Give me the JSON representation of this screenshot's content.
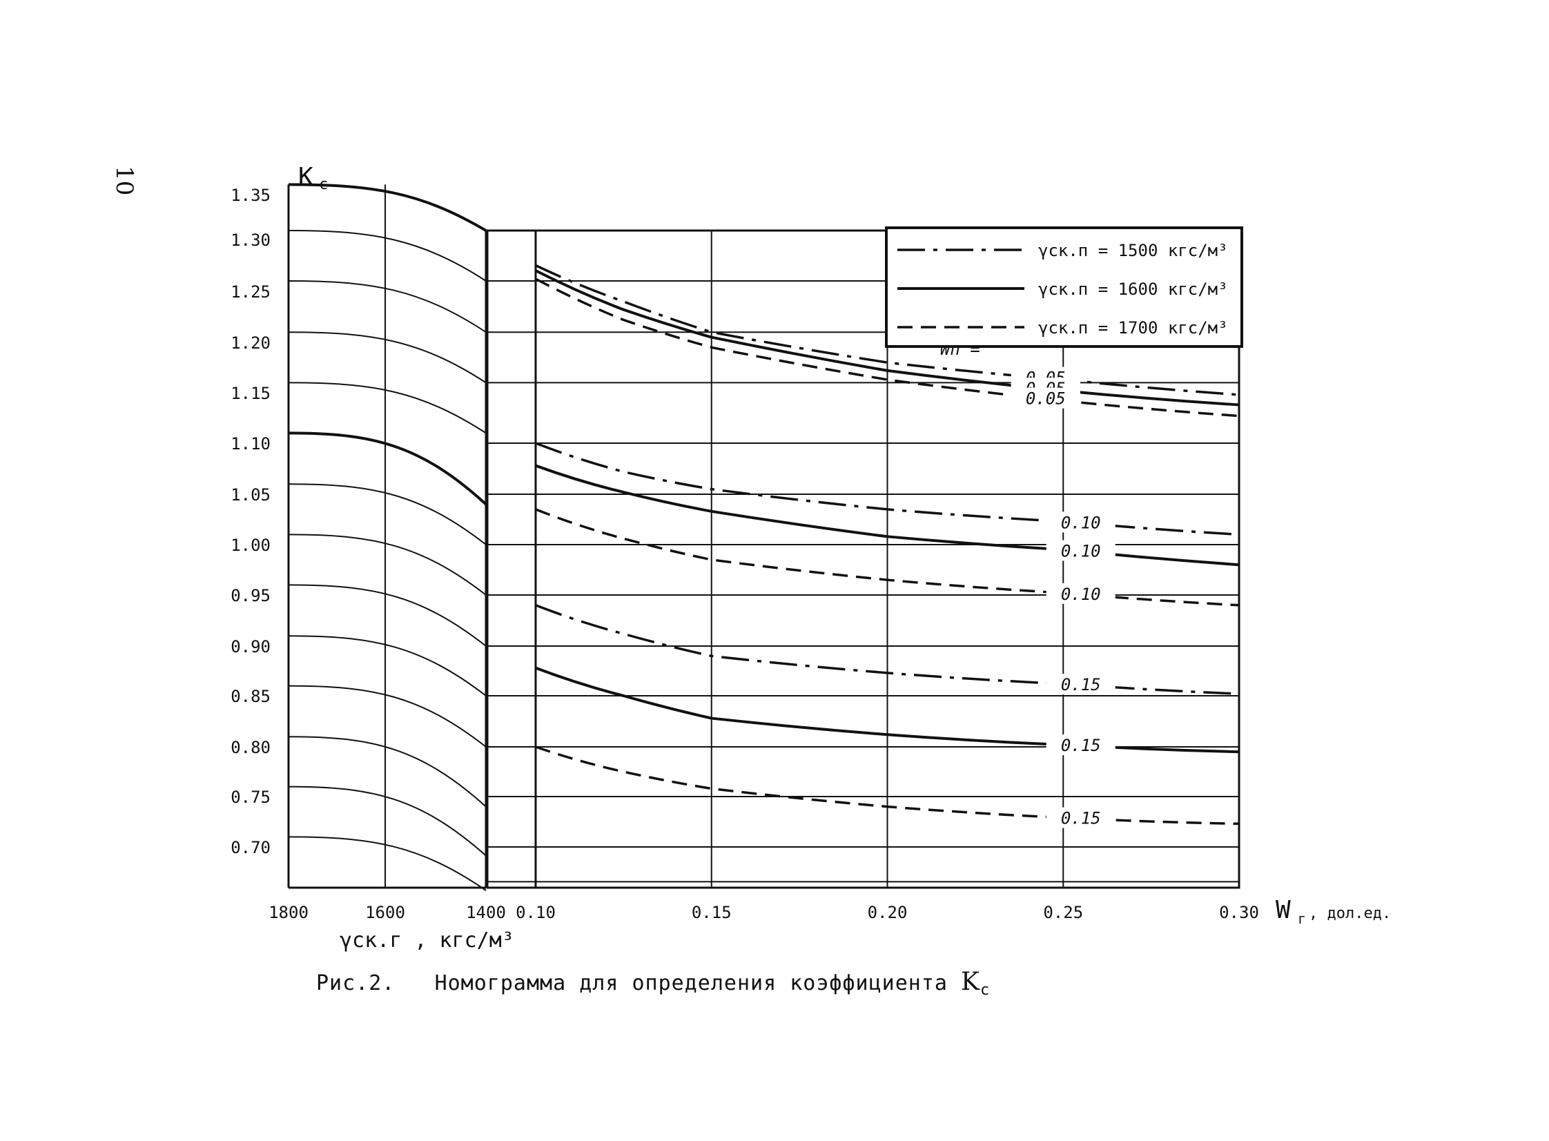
{
  "page_number": "10",
  "caption": {
    "prefix": "Рис.2.",
    "text": "Номограмма для определения коэффициента",
    "symbol": "K",
    "subscript": "с"
  },
  "chart_data": {
    "type": "line",
    "title": "",
    "y_axis": {
      "label": "K",
      "label_subscript": "с",
      "ticks": [
        "1.35",
        "1.30",
        "1.25",
        "1.20",
        "1.15",
        "1.10",
        "1.05",
        "1.00",
        "0.95",
        "0.90",
        "0.85",
        "0.80",
        "0.75",
        "0.70"
      ],
      "tick_values": [
        1.35,
        1.3,
        1.25,
        1.2,
        1.15,
        1.1,
        1.05,
        1.0,
        0.95,
        0.9,
        0.85,
        0.8,
        0.75,
        0.7
      ]
    },
    "left_panel": {
      "xlabel": "γск.г , кгс/м³",
      "x_ticks": [
        "1800",
        "1600",
        "1400"
      ],
      "x_range": [
        1800,
        1400
      ],
      "grid_curves_start_K": [
        1.36,
        1.31,
        1.26,
        1.21,
        1.16,
        1.11,
        1.06,
        1.01,
        0.96,
        0.91,
        0.86,
        0.81,
        0.76,
        0.71
      ],
      "grid_curves_end_K": [
        1.31,
        1.26,
        1.21,
        1.16,
        1.11,
        1.04,
        1.0,
        0.95,
        0.9,
        0.85,
        0.8,
        0.74,
        0.69,
        0.65
      ],
      "bold_curves_index": [
        0,
        5
      ]
    },
    "right_panel": {
      "xlabel": "W",
      "xlabel_subscript": "г",
      "xlabel_unit": ", дол.ед.",
      "x_ticks": [
        "0.10",
        "0.15",
        "0.20",
        "0.25",
        "0.30"
      ],
      "x_range": [
        0.1,
        0.3
      ],
      "horizontal_grid_K": [
        1.31,
        1.26,
        1.21,
        1.16,
        1.1,
        1.05,
        1.0,
        0.95,
        0.9,
        0.85,
        0.8,
        0.75,
        0.7,
        0.66
      ]
    },
    "legend": {
      "position": "top-right",
      "entries": [
        {
          "style": "dashdot",
          "label": "γск.п = 1500 кгс/м³"
        },
        {
          "style": "solid",
          "label": "γск.п = 1600 кгс/м³"
        },
        {
          "style": "dashed",
          "label": "γск.п = 1700 кгс/м³"
        }
      ]
    },
    "series_label_prefix": "Wп =",
    "series": [
      {
        "wp": "0.05",
        "style": "dashdot",
        "label_at": 0.245,
        "x": [
          0.1,
          0.125,
          0.15,
          0.2,
          0.25,
          0.3
        ],
        "y": [
          1.275,
          1.24,
          1.21,
          1.18,
          1.163,
          1.148
        ]
      },
      {
        "wp": "0.05",
        "style": "solid",
        "label_at": 0.245,
        "x": [
          0.1,
          0.125,
          0.15,
          0.2,
          0.25,
          0.3
        ],
        "y": [
          1.27,
          1.232,
          1.205,
          1.172,
          1.152,
          1.138
        ]
      },
      {
        "wp": "0.05",
        "style": "dashed",
        "label_at": 0.245,
        "x": [
          0.1,
          0.125,
          0.15,
          0.2,
          0.25,
          0.3
        ],
        "y": [
          1.262,
          1.222,
          1.195,
          1.163,
          1.142,
          1.127
        ]
      },
      {
        "wp": "0.10",
        "style": "dashdot",
        "label_at": 0.255,
        "x": [
          0.1,
          0.125,
          0.15,
          0.2,
          0.25,
          0.3
        ],
        "y": [
          1.1,
          1.072,
          1.055,
          1.035,
          1.023,
          1.01
        ]
      },
      {
        "wp": "0.10",
        "style": "solid",
        "label_at": 0.255,
        "x": [
          0.1,
          0.125,
          0.15,
          0.2,
          0.25,
          0.3
        ],
        "y": [
          1.078,
          1.052,
          1.033,
          1.008,
          0.995,
          0.98
        ]
      },
      {
        "wp": "0.10",
        "style": "dashed",
        "label_at": 0.255,
        "x": [
          0.1,
          0.125,
          0.15,
          0.2,
          0.25,
          0.3
        ],
        "y": [
          1.035,
          1.006,
          0.985,
          0.965,
          0.952,
          0.94
        ]
      },
      {
        "wp": "0.15",
        "style": "dashdot",
        "label_at": 0.255,
        "x": [
          0.1,
          0.125,
          0.15,
          0.2,
          0.25,
          0.3
        ],
        "y": [
          0.94,
          0.912,
          0.89,
          0.873,
          0.862,
          0.852
        ]
      },
      {
        "wp": "0.15",
        "style": "solid",
        "label_at": 0.255,
        "x": [
          0.1,
          0.125,
          0.15,
          0.2,
          0.25,
          0.3
        ],
        "y": [
          0.878,
          0.85,
          0.828,
          0.812,
          0.802,
          0.795
        ]
      },
      {
        "wp": "0.15",
        "style": "dashed",
        "label_at": 0.255,
        "x": [
          0.1,
          0.125,
          0.15,
          0.2,
          0.25,
          0.3
        ],
        "y": [
          0.8,
          0.775,
          0.758,
          0.74,
          0.729,
          0.723
        ]
      }
    ]
  }
}
